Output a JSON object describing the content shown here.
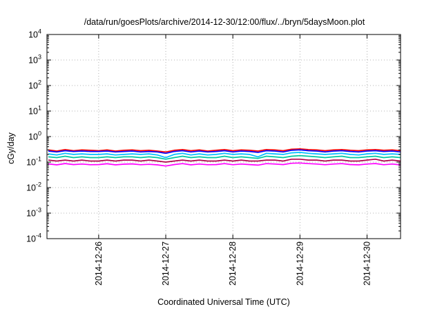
{
  "chart_data": {
    "type": "line",
    "title": "/data/run/goesPlots/archive/2014-12-30/12:00/flux/../bryn/5daysMoon.plot",
    "xlabel": "Coordinated Universal Time (UTC)",
    "ylabel": "cGy/day",
    "yscale": "log",
    "ylim": [
      0.0001,
      10000
    ],
    "xlim": [
      "2014-12-25T05:30",
      "2014-12-30T12:00"
    ],
    "grid": true,
    "legend": "none",
    "x_ticks": [
      {
        "label": "2014-12-26",
        "value": "2014-12-26T00:00"
      },
      {
        "label": "2014-12-27",
        "value": "2014-12-27T00:00"
      },
      {
        "label": "2014-12-28",
        "value": "2014-12-28T00:00"
      },
      {
        "label": "2014-12-29",
        "value": "2014-12-29T00:00"
      },
      {
        "label": "2014-12-30",
        "value": "2014-12-30T00:00"
      }
    ],
    "y_ticks": [
      {
        "base": "10",
        "exp": "-4",
        "value": 0.0001
      },
      {
        "base": "10",
        "exp": "-3",
        "value": 0.001
      },
      {
        "base": "10",
        "exp": "-2",
        "value": 0.01
      },
      {
        "base": "10",
        "exp": "-1",
        "value": 0.1
      },
      {
        "base": "10",
        "exp": "0",
        "value": 1
      },
      {
        "base": "10",
        "exp": "1",
        "value": 10
      },
      {
        "base": "10",
        "exp": "2",
        "value": 100
      },
      {
        "base": "10",
        "exp": "3",
        "value": 1000
      },
      {
        "base": "10",
        "exp": "4",
        "value": 10000
      }
    ],
    "x": [
      "2014-12-25T06:00",
      "2014-12-25T09:00",
      "2014-12-25T12:00",
      "2014-12-25T15:00",
      "2014-12-25T18:00",
      "2014-12-25T21:00",
      "2014-12-26T00:00",
      "2014-12-26T03:00",
      "2014-12-26T06:00",
      "2014-12-26T09:00",
      "2014-12-26T12:00",
      "2014-12-26T15:00",
      "2014-12-26T18:00",
      "2014-12-26T21:00",
      "2014-12-27T00:00",
      "2014-12-27T03:00",
      "2014-12-27T06:00",
      "2014-12-27T09:00",
      "2014-12-27T12:00",
      "2014-12-27T15:00",
      "2014-12-27T18:00",
      "2014-12-27T21:00",
      "2014-12-28T00:00",
      "2014-12-28T03:00",
      "2014-12-28T06:00",
      "2014-12-28T09:00",
      "2014-12-28T12:00",
      "2014-12-28T15:00",
      "2014-12-28T18:00",
      "2014-12-28T21:00",
      "2014-12-29T00:00",
      "2014-12-29T03:00",
      "2014-12-29T06:00",
      "2014-12-29T09:00",
      "2014-12-29T12:00",
      "2014-12-29T15:00",
      "2014-12-29T18:00",
      "2014-12-29T21:00",
      "2014-12-30T00:00",
      "2014-12-30T03:00",
      "2014-12-30T06:00",
      "2014-12-30T09:00",
      "2014-12-30T12:00"
    ],
    "series": [
      {
        "color": "#ff0000",
        "values": [
          0.3,
          0.27,
          0.31,
          0.28,
          0.3,
          0.29,
          0.28,
          0.3,
          0.27,
          0.29,
          0.3,
          0.28,
          0.29,
          0.27,
          0.25,
          0.29,
          0.31,
          0.28,
          0.3,
          0.27,
          0.29,
          0.31,
          0.28,
          0.3,
          0.29,
          0.27,
          0.31,
          0.3,
          0.28,
          0.32,
          0.33,
          0.31,
          0.3,
          0.28,
          0.3,
          0.31,
          0.29,
          0.28,
          0.3,
          0.31,
          0.29,
          0.3,
          0.28
        ]
      },
      {
        "color": "#0000ff",
        "values": [
          0.27,
          0.25,
          0.28,
          0.26,
          0.27,
          0.26,
          0.26,
          0.27,
          0.25,
          0.26,
          0.27,
          0.25,
          0.26,
          0.25,
          0.22,
          0.26,
          0.28,
          0.25,
          0.27,
          0.25,
          0.26,
          0.28,
          0.25,
          0.27,
          0.26,
          0.24,
          0.28,
          0.27,
          0.25,
          0.29,
          0.3,
          0.28,
          0.27,
          0.25,
          0.27,
          0.28,
          0.26,
          0.25,
          0.27,
          0.28,
          0.26,
          0.27,
          0.25
        ]
      },
      {
        "color": "#00bfff",
        "values": [
          0.21,
          0.19,
          0.22,
          0.2,
          0.21,
          0.2,
          0.2,
          0.21,
          0.19,
          0.2,
          0.21,
          0.2,
          0.21,
          0.19,
          0.15,
          0.2,
          0.22,
          0.19,
          0.21,
          0.19,
          0.2,
          0.22,
          0.2,
          0.21,
          0.2,
          0.16,
          0.22,
          0.21,
          0.2,
          0.23,
          0.24,
          0.22,
          0.21,
          0.2,
          0.21,
          0.22,
          0.2,
          0.19,
          0.21,
          0.22,
          0.2,
          0.21,
          0.2
        ]
      },
      {
        "color": "#00c8a0",
        "values": [
          0.16,
          0.15,
          0.17,
          0.15,
          0.16,
          0.15,
          0.15,
          0.16,
          0.15,
          0.16,
          0.16,
          0.15,
          0.16,
          0.15,
          0.13,
          0.15,
          0.17,
          0.15,
          0.16,
          0.15,
          0.15,
          0.17,
          0.15,
          0.16,
          0.15,
          0.14,
          0.17,
          0.16,
          0.15,
          0.17,
          0.18,
          0.17,
          0.16,
          0.15,
          0.16,
          0.17,
          0.15,
          0.15,
          0.16,
          0.17,
          0.15,
          0.16,
          0.15
        ]
      },
      {
        "color": "#b0004a",
        "values": [
          0.12,
          0.11,
          0.12,
          0.11,
          0.12,
          0.11,
          0.11,
          0.12,
          0.11,
          0.12,
          0.12,
          0.11,
          0.12,
          0.11,
          0.1,
          0.11,
          0.12,
          0.11,
          0.12,
          0.11,
          0.11,
          0.12,
          0.11,
          0.12,
          0.11,
          0.11,
          0.12,
          0.12,
          0.11,
          0.13,
          0.13,
          0.12,
          0.12,
          0.11,
          0.12,
          0.12,
          0.11,
          0.11,
          0.12,
          0.13,
          0.11,
          0.12,
          0.11
        ]
      },
      {
        "color": "#ff00ff",
        "values": [
          0.085,
          0.078,
          0.088,
          0.08,
          0.084,
          0.079,
          0.08,
          0.086,
          0.078,
          0.083,
          0.085,
          0.079,
          0.082,
          0.078,
          0.07,
          0.08,
          0.087,
          0.078,
          0.084,
          0.079,
          0.08,
          0.087,
          0.079,
          0.084,
          0.08,
          0.076,
          0.087,
          0.084,
          0.08,
          0.09,
          0.092,
          0.087,
          0.084,
          0.079,
          0.084,
          0.087,
          0.08,
          0.078,
          0.084,
          0.088,
          0.079,
          0.084,
          0.078
        ]
      }
    ]
  }
}
